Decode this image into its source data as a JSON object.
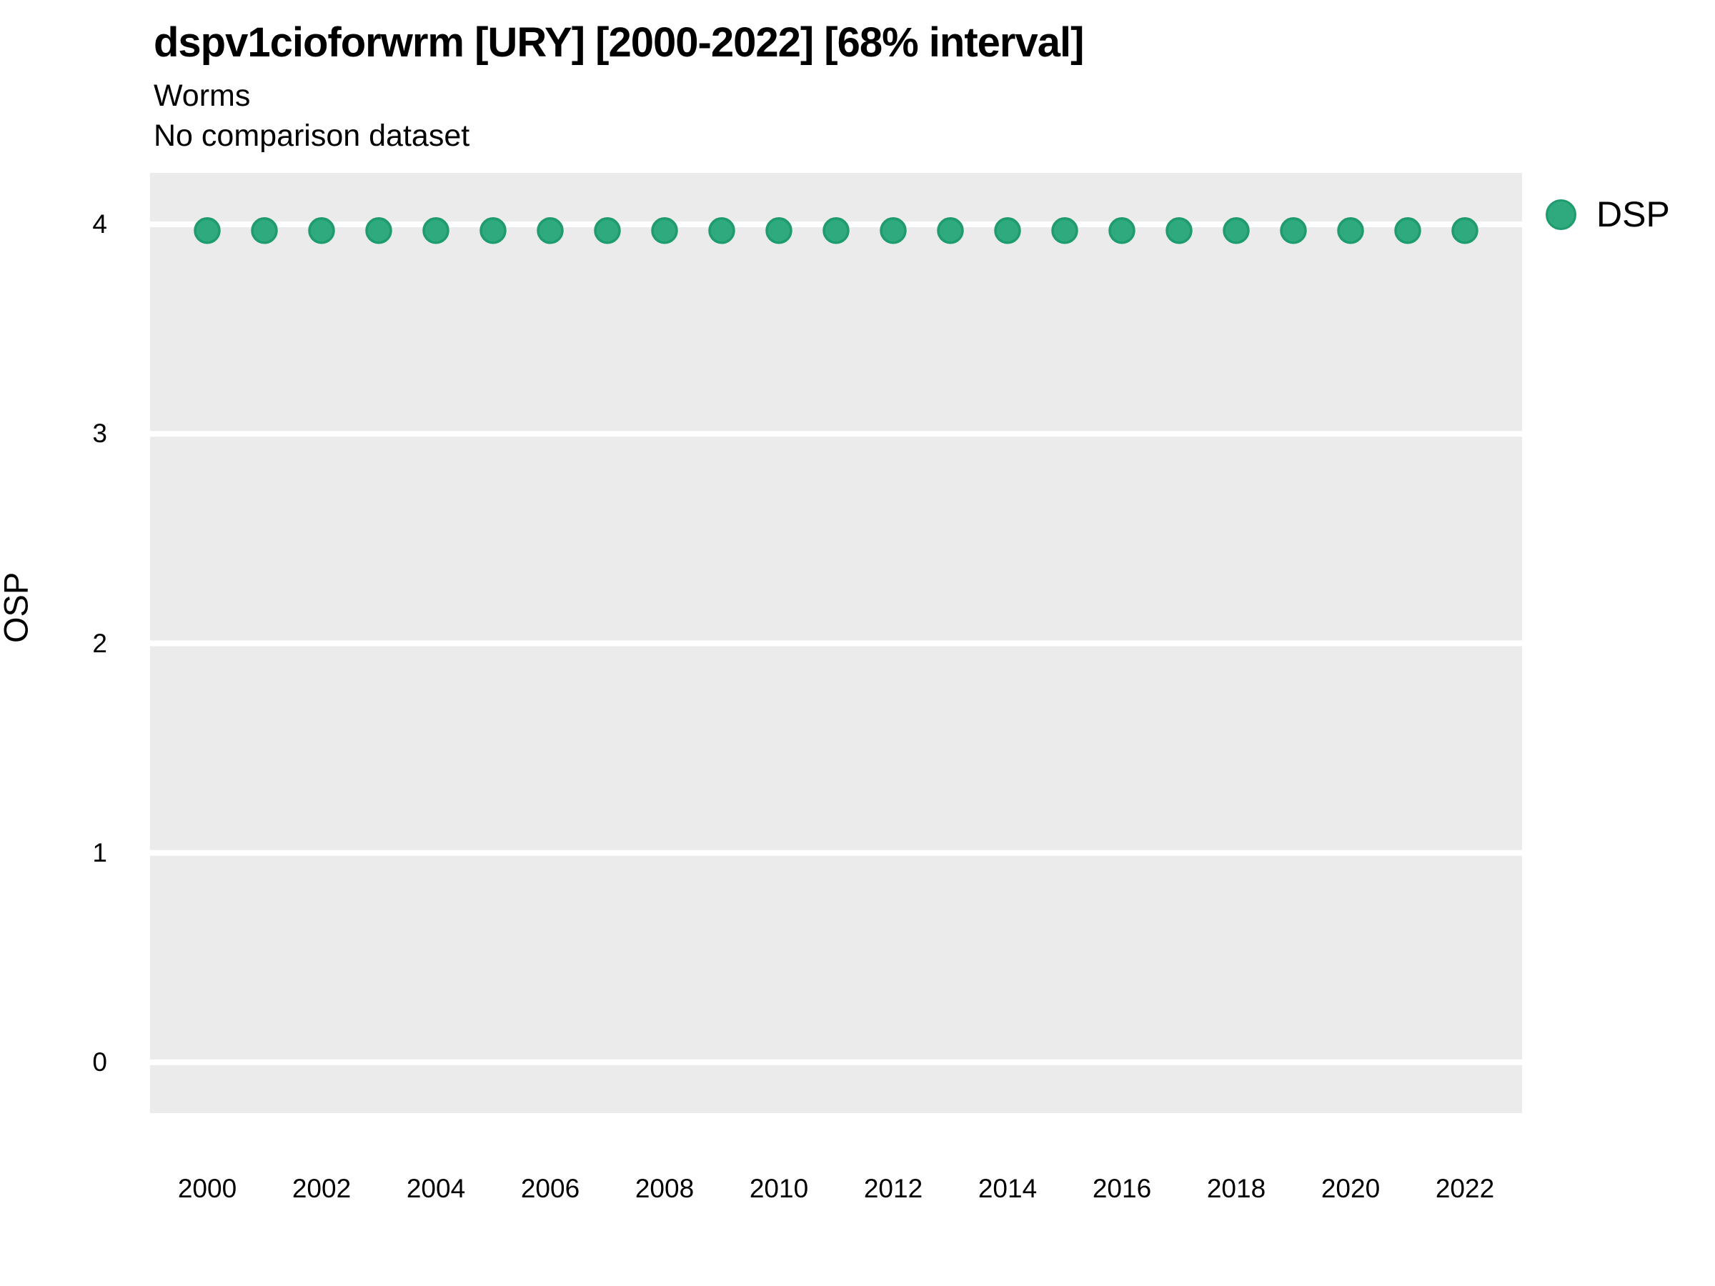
{
  "header": {
    "title": "dspv1cioforwrm [URY] [2000-2022] [68% interval]",
    "subtitle": "Worms",
    "note": "No comparison dataset"
  },
  "y_axis": {
    "label": "OSP"
  },
  "x_axis": {
    "label": ""
  },
  "legend": {
    "position": "right-top",
    "items": [
      {
        "label": "DSP",
        "color": "#2FA97E",
        "shape": "circle"
      }
    ]
  },
  "colors": {
    "page_bg": "#FFFFFF",
    "panel_bg": "#EBEBEB",
    "gridline": "#FFFFFF",
    "point_fill": "#2FA97E",
    "point_stroke": "#1E9C6D",
    "text": "#000000"
  },
  "chart_data": {
    "type": "scatter",
    "title": "dspv1cioforwrm [URY] [2000-2022] [68% interval]",
    "subtitle": "Worms",
    "note": "No comparison dataset",
    "xlabel": "",
    "ylabel": "OSP",
    "xlim": [
      1999,
      2023
    ],
    "ylim": [
      -0.24,
      4.25
    ],
    "x_ticks": [
      2000,
      2002,
      2004,
      2006,
      2008,
      2010,
      2012,
      2014,
      2016,
      2018,
      2020,
      2022
    ],
    "y_ticks": [
      0,
      1,
      2,
      3,
      4
    ],
    "grid": "horizontal-major-only",
    "legend_position": "right-top",
    "series": [
      {
        "name": "DSP",
        "x": [
          2000,
          2001,
          2002,
          2003,
          2004,
          2005,
          2006,
          2007,
          2008,
          2009,
          2010,
          2011,
          2012,
          2013,
          2014,
          2015,
          2016,
          2017,
          2018,
          2019,
          2020,
          2021,
          2022
        ],
        "y": [
          3.97,
          3.97,
          3.97,
          3.97,
          3.97,
          3.97,
          3.97,
          3.97,
          3.97,
          3.97,
          3.97,
          3.97,
          3.97,
          3.97,
          3.97,
          3.97,
          3.97,
          3.97,
          3.97,
          3.97,
          3.97,
          3.97,
          3.97
        ]
      }
    ]
  }
}
